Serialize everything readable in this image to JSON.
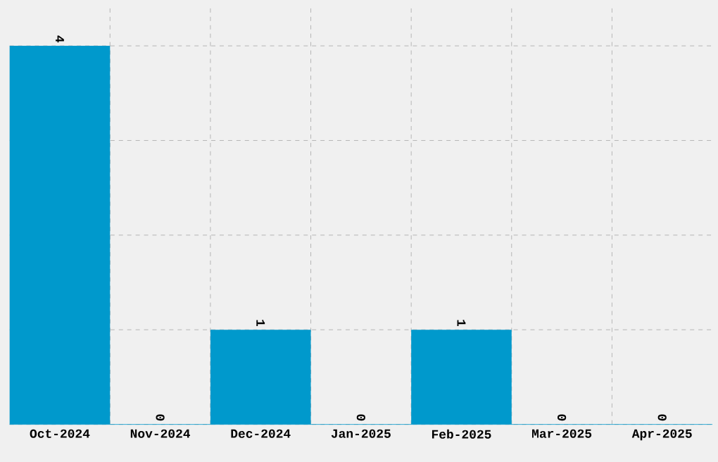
{
  "chart_data": {
    "type": "bar",
    "categories": [
      "Oct-2024",
      "Nov-2024",
      "Dec-2024",
      "Jan-2025",
      "Feb-2025",
      "Mar-2025",
      "Apr-2025"
    ],
    "values": [
      4,
      0,
      1,
      0,
      1,
      0,
      0
    ],
    "color": "#0099cc",
    "ylim": [
      0,
      4.44
    ],
    "tick_labels": "x",
    "grid": true,
    "data_labels": true
  }
}
